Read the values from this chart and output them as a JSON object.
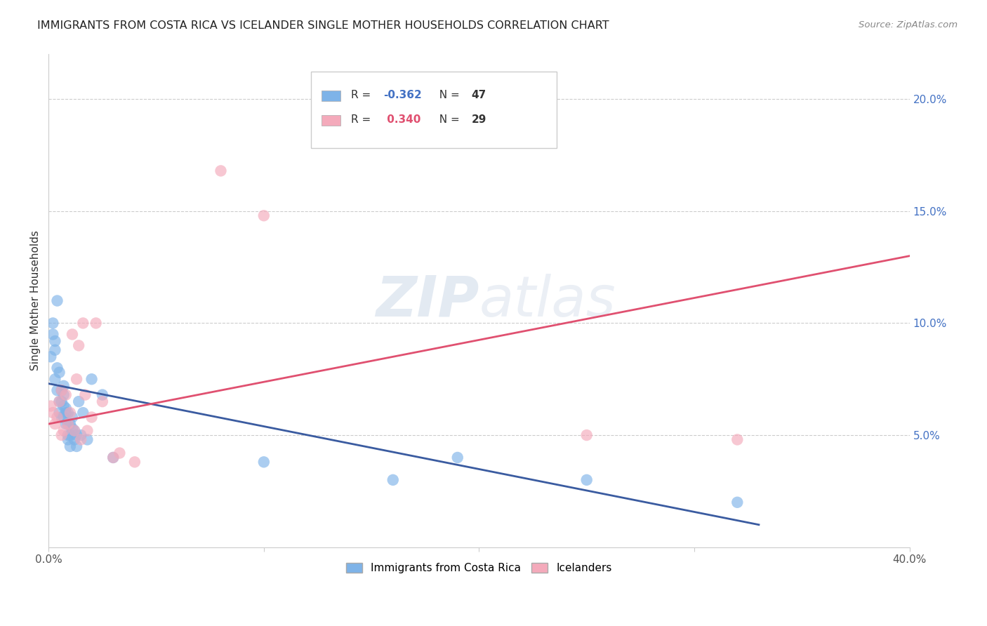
{
  "title": "IMMIGRANTS FROM COSTA RICA VS ICELANDER SINGLE MOTHER HOUSEHOLDS CORRELATION CHART",
  "source": "Source: ZipAtlas.com",
  "ylabel": "Single Mother Households",
  "right_yticks": [
    "5.0%",
    "10.0%",
    "15.0%",
    "20.0%"
  ],
  "right_ytick_vals": [
    0.05,
    0.1,
    0.15,
    0.2
  ],
  "xlim": [
    0.0,
    0.4
  ],
  "ylim": [
    0.0,
    0.22
  ],
  "legend_label_blue": "Immigrants from Costa Rica",
  "legend_label_pink": "Icelanders",
  "blue_color": "#7EB3E8",
  "pink_color": "#F4AABB",
  "blue_line_color": "#3A5BA0",
  "pink_line_color": "#E05070",
  "watermark1": "ZIP",
  "watermark2": "atlas",
  "blue_scatter_x": [
    0.001,
    0.002,
    0.002,
    0.003,
    0.003,
    0.003,
    0.004,
    0.004,
    0.004,
    0.005,
    0.005,
    0.005,
    0.006,
    0.006,
    0.006,
    0.007,
    0.007,
    0.007,
    0.007,
    0.008,
    0.008,
    0.008,
    0.009,
    0.009,
    0.009,
    0.009,
    0.01,
    0.01,
    0.01,
    0.011,
    0.011,
    0.012,
    0.012,
    0.013,
    0.013,
    0.014,
    0.015,
    0.016,
    0.018,
    0.02,
    0.025,
    0.03,
    0.1,
    0.16,
    0.19,
    0.25,
    0.32
  ],
  "blue_scatter_y": [
    0.085,
    0.095,
    0.1,
    0.088,
    0.092,
    0.075,
    0.08,
    0.07,
    0.11,
    0.078,
    0.065,
    0.06,
    0.07,
    0.065,
    0.058,
    0.072,
    0.068,
    0.063,
    0.058,
    0.06,
    0.055,
    0.062,
    0.06,
    0.055,
    0.05,
    0.048,
    0.055,
    0.05,
    0.045,
    0.058,
    0.053,
    0.052,
    0.048,
    0.05,
    0.045,
    0.065,
    0.05,
    0.06,
    0.048,
    0.075,
    0.068,
    0.04,
    0.038,
    0.03,
    0.04,
    0.03,
    0.02
  ],
  "pink_scatter_x": [
    0.001,
    0.002,
    0.003,
    0.004,
    0.005,
    0.006,
    0.006,
    0.007,
    0.008,
    0.009,
    0.01,
    0.011,
    0.012,
    0.013,
    0.014,
    0.015,
    0.016,
    0.017,
    0.018,
    0.02,
    0.022,
    0.025,
    0.03,
    0.033,
    0.04,
    0.08,
    0.1,
    0.25,
    0.32
  ],
  "pink_scatter_y": [
    0.063,
    0.06,
    0.055,
    0.058,
    0.065,
    0.05,
    0.07,
    0.052,
    0.068,
    0.055,
    0.06,
    0.095,
    0.052,
    0.075,
    0.09,
    0.048,
    0.1,
    0.068,
    0.052,
    0.058,
    0.1,
    0.065,
    0.04,
    0.042,
    0.038,
    0.168,
    0.148,
    0.05,
    0.048
  ],
  "blue_trendline_x": [
    0.0,
    0.33
  ],
  "blue_trendline_y": [
    0.073,
    0.01
  ],
  "pink_trendline_x": [
    0.0,
    0.4
  ],
  "pink_trendline_y": [
    0.055,
    0.13
  ]
}
